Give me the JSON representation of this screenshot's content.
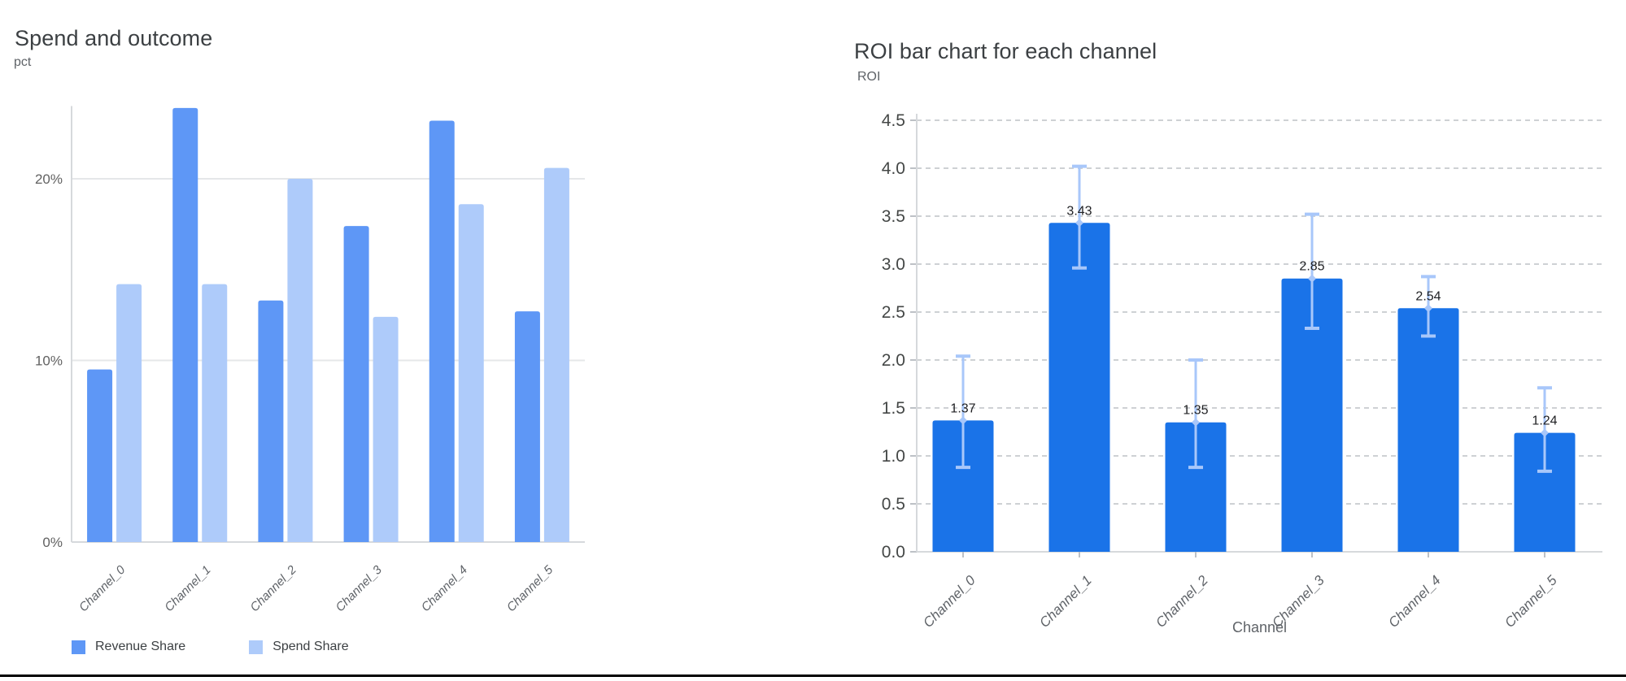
{
  "page": {
    "background_color": "#ffffff",
    "bottom_border_color": "#000000"
  },
  "chart_data": [
    {
      "type": "bar",
      "title": "Spend and outcome",
      "ylabel": "pct",
      "xlabel": "",
      "categories": [
        "Channel_0",
        "Channel_1",
        "Channel_2",
        "Channel_3",
        "Channel_4",
        "Channel_5"
      ],
      "series": [
        {
          "name": "Revenue Share",
          "color": "#5e97f6",
          "values": [
            9.5,
            23.9,
            13.3,
            17.4,
            23.2,
            12.7
          ]
        },
        {
          "name": "Spend Share",
          "color": "#aecbfa",
          "values": [
            14.2,
            14.2,
            20.0,
            12.4,
            18.6,
            20.6
          ]
        }
      ],
      "y_ticks": [
        {
          "value": 0,
          "label": "0%"
        },
        {
          "value": 10,
          "label": "10%"
        },
        {
          "value": 20,
          "label": "20%"
        }
      ],
      "ylim": [
        0,
        24
      ],
      "grid": "solid",
      "legend_position": "bottom"
    },
    {
      "type": "bar",
      "title": "ROI bar chart for each channel",
      "ylabel": "ROI",
      "xlabel": "Channel",
      "categories": [
        "Channel_0",
        "Channel_1",
        "Channel_2",
        "Channel_3",
        "Channel_4",
        "Channel_5"
      ],
      "values": [
        1.37,
        3.43,
        1.35,
        2.85,
        2.54,
        1.24
      ],
      "value_labels": [
        "1.37",
        "3.43",
        "1.35",
        "2.85",
        "2.54",
        "1.24"
      ],
      "error_lower": [
        0.88,
        2.96,
        0.88,
        2.33,
        2.25,
        0.84
      ],
      "error_upper": [
        2.04,
        4.02,
        2.0,
        3.52,
        2.87,
        1.71
      ],
      "bar_color": "#1a73e8",
      "error_bar_color": "#a8c7fa",
      "y_ticks": [
        {
          "value": 0.0,
          "label": "0.0"
        },
        {
          "value": 0.5,
          "label": "0.5"
        },
        {
          "value": 1.0,
          "label": "1.0"
        },
        {
          "value": 1.5,
          "label": "1.5"
        },
        {
          "value": 2.0,
          "label": "2.0"
        },
        {
          "value": 2.5,
          "label": "2.5"
        },
        {
          "value": 3.0,
          "label": "3.0"
        },
        {
          "value": 3.5,
          "label": "3.5"
        },
        {
          "value": 4.0,
          "label": "4.0"
        },
        {
          "value": 4.5,
          "label": "4.5"
        }
      ],
      "ylim": [
        0,
        4.5
      ],
      "grid": "dashed",
      "legend_position": "none"
    }
  ]
}
